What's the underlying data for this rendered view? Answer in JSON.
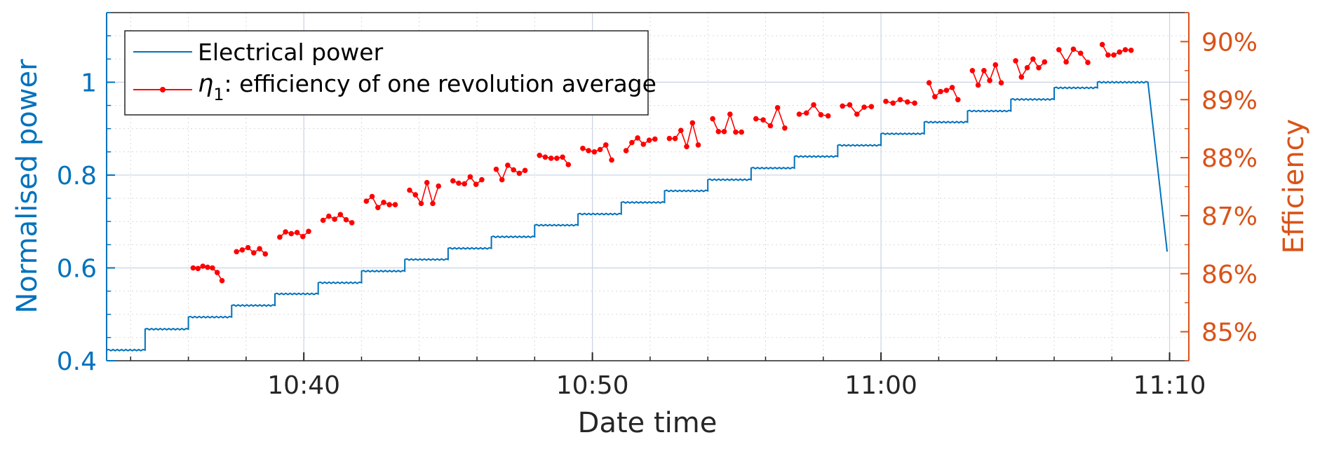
{
  "chart_data": {
    "type": "line",
    "xlabel": "Date time",
    "ylabel_left": "Normalised power",
    "ylabel_right": "Efficiency",
    "x_range": [
      "10:33:10",
      "11:10:40"
    ],
    "x_ticks": [
      "10:40",
      "10:50",
      "11:00",
      "11:10"
    ],
    "ylim_left": [
      0.4,
      1.15
    ],
    "yticks_left": [
      "0.4",
      "0.6",
      "0.8",
      "1"
    ],
    "ylim_right": [
      84.5,
      90.5
    ],
    "yticks_right": [
      "85%",
      "86%",
      "87%",
      "88%",
      "89%",
      "90%"
    ],
    "grid": true,
    "legend_position": "top-left",
    "colors": {
      "power": "#0072BD",
      "efficiency": "#FF0000",
      "left_axis": "#0072BD",
      "right_axis": "#D95319"
    },
    "legend": {
      "power_label": "Electrical power",
      "eff_symbol": "η",
      "eff_subscript": "1",
      "eff_text": ": efficiency of one revolution average"
    },
    "series": [
      {
        "name": "Electrical power",
        "axis": "left",
        "style": "line",
        "steps": [
          {
            "start": "10:33:10",
            "value": 0.423
          },
          {
            "start": "10:34:30",
            "value": 0.468
          },
          {
            "start": "10:36:00",
            "value": 0.494
          },
          {
            "start": "10:37:30",
            "value": 0.519
          },
          {
            "start": "10:39:00",
            "value": 0.544
          },
          {
            "start": "10:40:30",
            "value": 0.568
          },
          {
            "start": "10:42:00",
            "value": 0.593
          },
          {
            "start": "10:43:30",
            "value": 0.618
          },
          {
            "start": "10:45:00",
            "value": 0.642
          },
          {
            "start": "10:46:30",
            "value": 0.667
          },
          {
            "start": "10:48:00",
            "value": 0.692
          },
          {
            "start": "10:49:30",
            "value": 0.716
          },
          {
            "start": "10:51:00",
            "value": 0.741
          },
          {
            "start": "10:52:30",
            "value": 0.766
          },
          {
            "start": "10:54:00",
            "value": 0.79
          },
          {
            "start": "10:55:30",
            "value": 0.815
          },
          {
            "start": "10:57:00",
            "value": 0.84
          },
          {
            "start": "10:58:30",
            "value": 0.864
          },
          {
            "start": "11:00:00",
            "value": 0.889
          },
          {
            "start": "11:01:30",
            "value": 0.914
          },
          {
            "start": "11:03:00",
            "value": 0.938
          },
          {
            "start": "11:04:30",
            "value": 0.963
          },
          {
            "start": "11:06:00",
            "value": 0.988
          },
          {
            "start": "11:07:30",
            "value": 1.0
          }
        ],
        "end": {
          "time": "11:09:15",
          "value": 1.0
        },
        "drop": {
          "time": "11:09:55",
          "value": 0.635
        }
      },
      {
        "name": "η1: efficiency of one revolution average",
        "axis": "right",
        "style": "line-marker",
        "segments": [
          {
            "start": "10:36:10",
            "end": "10:37:10",
            "values": [
              86.1,
              86.09,
              86.13,
              86.11,
              86.1,
              86.02,
              85.88
            ]
          },
          {
            "start": "10:37:40",
            "end": "10:38:40",
            "values": [
              86.38,
              86.41,
              86.45,
              86.36,
              86.43,
              86.34
            ]
          },
          {
            "start": "10:39:10",
            "end": "10:40:10",
            "values": [
              86.63,
              86.72,
              86.69,
              86.71,
              86.64,
              86.73
            ]
          },
          {
            "start": "10:40:40",
            "end": "10:41:40",
            "values": [
              86.92,
              86.99,
              86.94,
              87.02,
              86.93,
              86.88
            ]
          },
          {
            "start": "10:42:10",
            "end": "10:43:10",
            "values": [
              87.25,
              87.33,
              87.14,
              87.23,
              87.19,
              87.19
            ]
          },
          {
            "start": "10:43:40",
            "end": "10:44:40",
            "values": [
              87.44,
              87.36,
              87.21,
              87.57,
              87.21,
              87.51
            ]
          },
          {
            "start": "10:45:10",
            "end": "10:46:10",
            "values": [
              87.6,
              87.56,
              87.55,
              87.67,
              87.54,
              87.62
            ]
          },
          {
            "start": "10:46:40",
            "end": "10:47:40",
            "values": [
              87.8,
              87.62,
              87.87,
              87.79,
              87.73,
              87.78
            ]
          },
          {
            "start": "10:48:10",
            "end": "10:49:10",
            "values": [
              88.04,
              88.01,
              87.99,
              87.99,
              88.01,
              87.88
            ]
          },
          {
            "start": "10:49:40",
            "end": "10:50:40",
            "values": [
              88.16,
              88.12,
              88.1,
              88.14,
              88.22,
              87.96
            ]
          },
          {
            "start": "10:51:10",
            "end": "10:52:10",
            "values": [
              88.12,
              88.26,
              88.34,
              88.23,
              88.3,
              88.32
            ]
          },
          {
            "start": "10:52:40",
            "end": "10:53:40",
            "values": [
              88.33,
              88.33,
              88.47,
              88.19,
              88.6,
              88.22
            ]
          },
          {
            "start": "10:54:10",
            "end": "10:55:10",
            "values": [
              88.67,
              88.45,
              88.45,
              88.75,
              88.44,
              88.44
            ]
          },
          {
            "start": "10:55:40",
            "end": "10:56:40",
            "values": [
              88.67,
              88.65,
              88.55,
              88.86,
              88.51
            ]
          },
          {
            "start": "10:57:10",
            "end": "10:58:10",
            "values": [
              88.75,
              88.77,
              88.91,
              88.74,
              88.72
            ]
          },
          {
            "start": "10:58:40",
            "end": "10:59:40",
            "values": [
              88.89,
              88.91,
              88.75,
              88.87,
              88.88
            ]
          },
          {
            "start": "11:00:10",
            "end": "11:01:10",
            "values": [
              88.97,
              88.94,
              89.0,
              88.96,
              88.94
            ]
          },
          {
            "start": "11:01:40",
            "end": "11:02:40",
            "values": [
              89.29,
              89.05,
              89.14,
              89.16,
              89.21,
              89.0
            ]
          },
          {
            "start": "11:03:10",
            "end": "11:04:10",
            "values": [
              89.5,
              89.25,
              89.5,
              89.33,
              89.6,
              89.29
            ]
          },
          {
            "start": "11:04:40",
            "end": "11:05:40",
            "values": [
              89.67,
              89.39,
              89.55,
              89.7,
              89.55,
              89.65
            ]
          },
          {
            "start": "11:06:10",
            "end": "11:07:10",
            "values": [
              89.86,
              89.65,
              89.87,
              89.8,
              89.64
            ]
          },
          {
            "start": "11:07:40",
            "end": "11:08:40",
            "values": [
              89.95,
              89.77,
              89.77,
              89.82,
              89.86,
              89.85
            ]
          }
        ]
      }
    ]
  }
}
